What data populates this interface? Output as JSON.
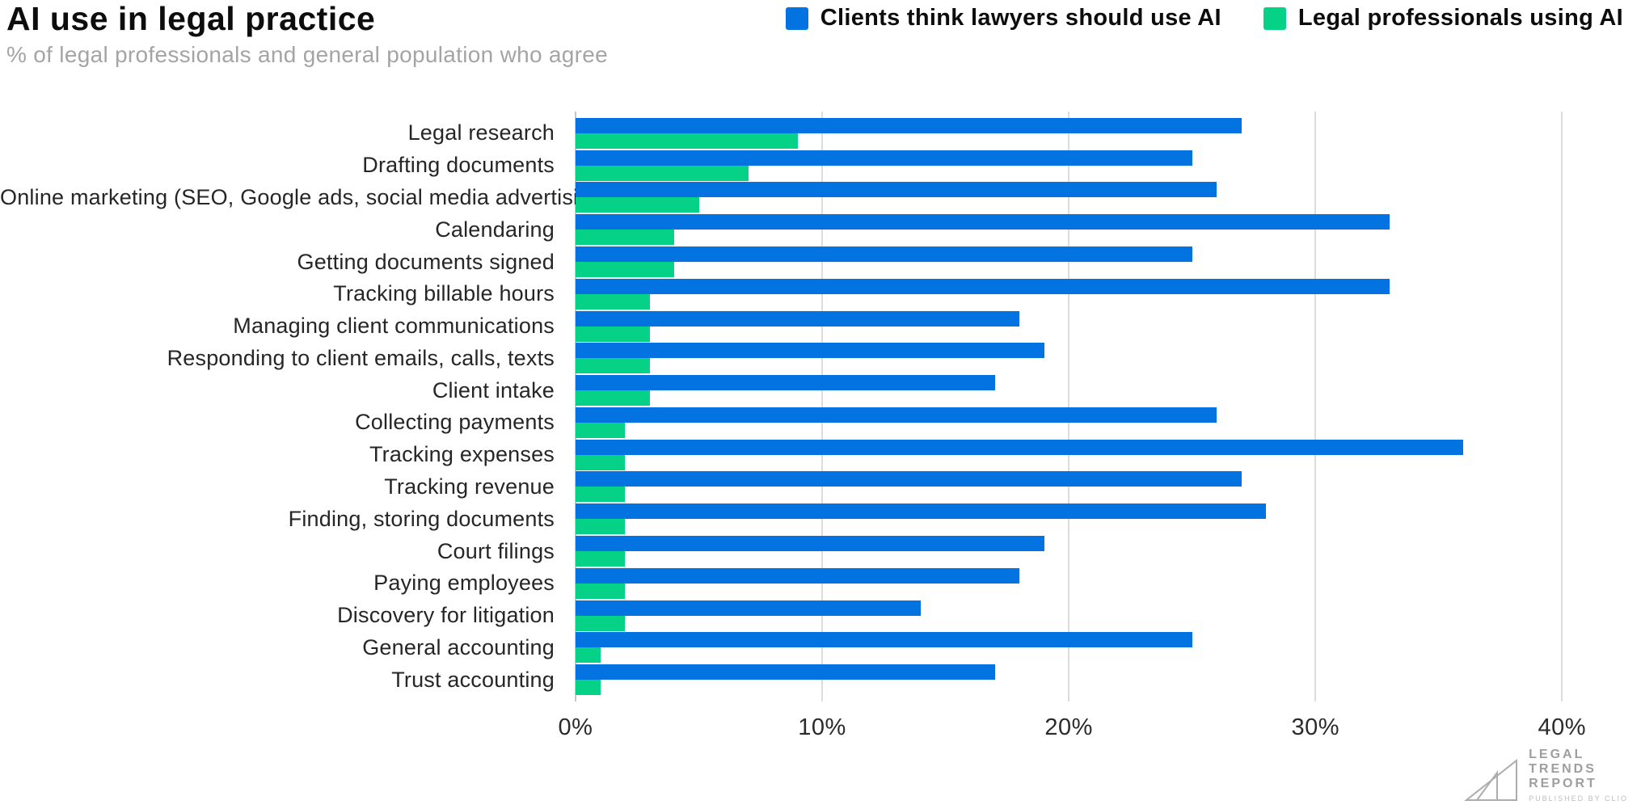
{
  "header": {
    "title": "AI use in legal practice",
    "subtitle": "% of legal professionals and general population who agree"
  },
  "legend": {
    "items": [
      {
        "label": "Clients think lawyers should use AI",
        "color": "#0473e2"
      },
      {
        "label": "Legal professionals using AI",
        "color": "#06d287"
      }
    ]
  },
  "chart_data": {
    "type": "bar",
    "orientation": "horizontal",
    "title": "AI use in legal practice",
    "subtitle": "% of legal professionals and general population who agree",
    "categories": [
      "Legal research",
      "Drafting documents",
      "Online marketing (SEO, Google ads, social media advertising)",
      "Calendaring",
      "Getting documents signed",
      "Tracking billable hours",
      "Managing client communications",
      "Responding to client emails, calls, texts",
      "Client intake",
      "Collecting payments",
      "Tracking expenses",
      "Tracking revenue",
      "Finding, storing documents",
      "Court filings",
      "Paying employees",
      "Discovery for litigation",
      "General accounting",
      "Trust accounting"
    ],
    "series": [
      {
        "name": "Clients think lawyers should use AI",
        "color": "#0473e2",
        "values": [
          27,
          25,
          26,
          33,
          25,
          33,
          18,
          19,
          17,
          26,
          36,
          27,
          28,
          19,
          18,
          14,
          25,
          17
        ]
      },
      {
        "name": "Legal professionals using AI",
        "color": "#06d287",
        "values": [
          9,
          7,
          5,
          4,
          4,
          3,
          3,
          3,
          3,
          2,
          2,
          2,
          2,
          2,
          2,
          2,
          1,
          1
        ]
      }
    ],
    "xlabel": "",
    "ylabel": "",
    "xticks": [
      "0%",
      "10%",
      "20%",
      "30%",
      "40%"
    ],
    "xtick_values": [
      0,
      10,
      20,
      30,
      40
    ],
    "xlim": [
      0,
      41.3
    ],
    "grid": "vertical",
    "legend_position": "top-right"
  },
  "footer": {
    "logo": {
      "lines": [
        "LEGAL",
        "TRENDS",
        "REPORT"
      ],
      "tagline": "PUBLISHED BY CLIO"
    }
  },
  "colors": {
    "blue": "#0473e2",
    "green": "#06d287",
    "gridline": "#dcdcdc",
    "axis_line": "#c6c6c6",
    "subtitle_text": "#a4a4a4",
    "logo_gray": "#9e9e9e"
  }
}
